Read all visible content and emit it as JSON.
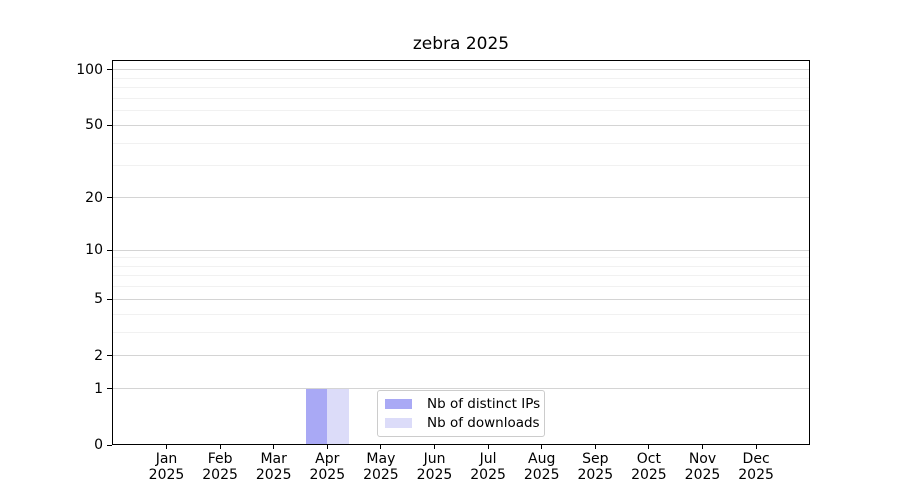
{
  "chart_data": {
    "type": "bar",
    "title": "zebra 2025",
    "x_year": "2025",
    "categories": [
      "Jan",
      "Feb",
      "Mar",
      "Apr",
      "May",
      "Jun",
      "Jul",
      "Aug",
      "Sep",
      "Oct",
      "Nov",
      "Dec"
    ],
    "series": [
      {
        "name": "Nb of distinct IPs",
        "color": "#a9a9f5",
        "values": [
          0,
          0,
          0,
          1,
          0,
          0,
          0,
          0,
          0,
          0,
          0,
          0
        ]
      },
      {
        "name": "Nb of downloads",
        "color": "#dcdcf9",
        "values": [
          0,
          0,
          0,
          1,
          0,
          0,
          0,
          0,
          0,
          0,
          0,
          0
        ]
      }
    ],
    "yscale": "log1p",
    "ylim": [
      0,
      113
    ],
    "y_major_ticks": [
      0,
      1,
      2,
      5,
      10,
      20,
      50,
      100
    ],
    "y_minor_ticks": [
      3,
      4,
      6,
      7,
      8,
      9,
      30,
      40,
      60,
      70,
      80,
      90
    ],
    "grid": "horizontal",
    "xlabel": "",
    "ylabel": "",
    "legend": {
      "position": "lower-center-inside",
      "labels": [
        "Nb of distinct IPs",
        "Nb of downloads"
      ]
    }
  }
}
